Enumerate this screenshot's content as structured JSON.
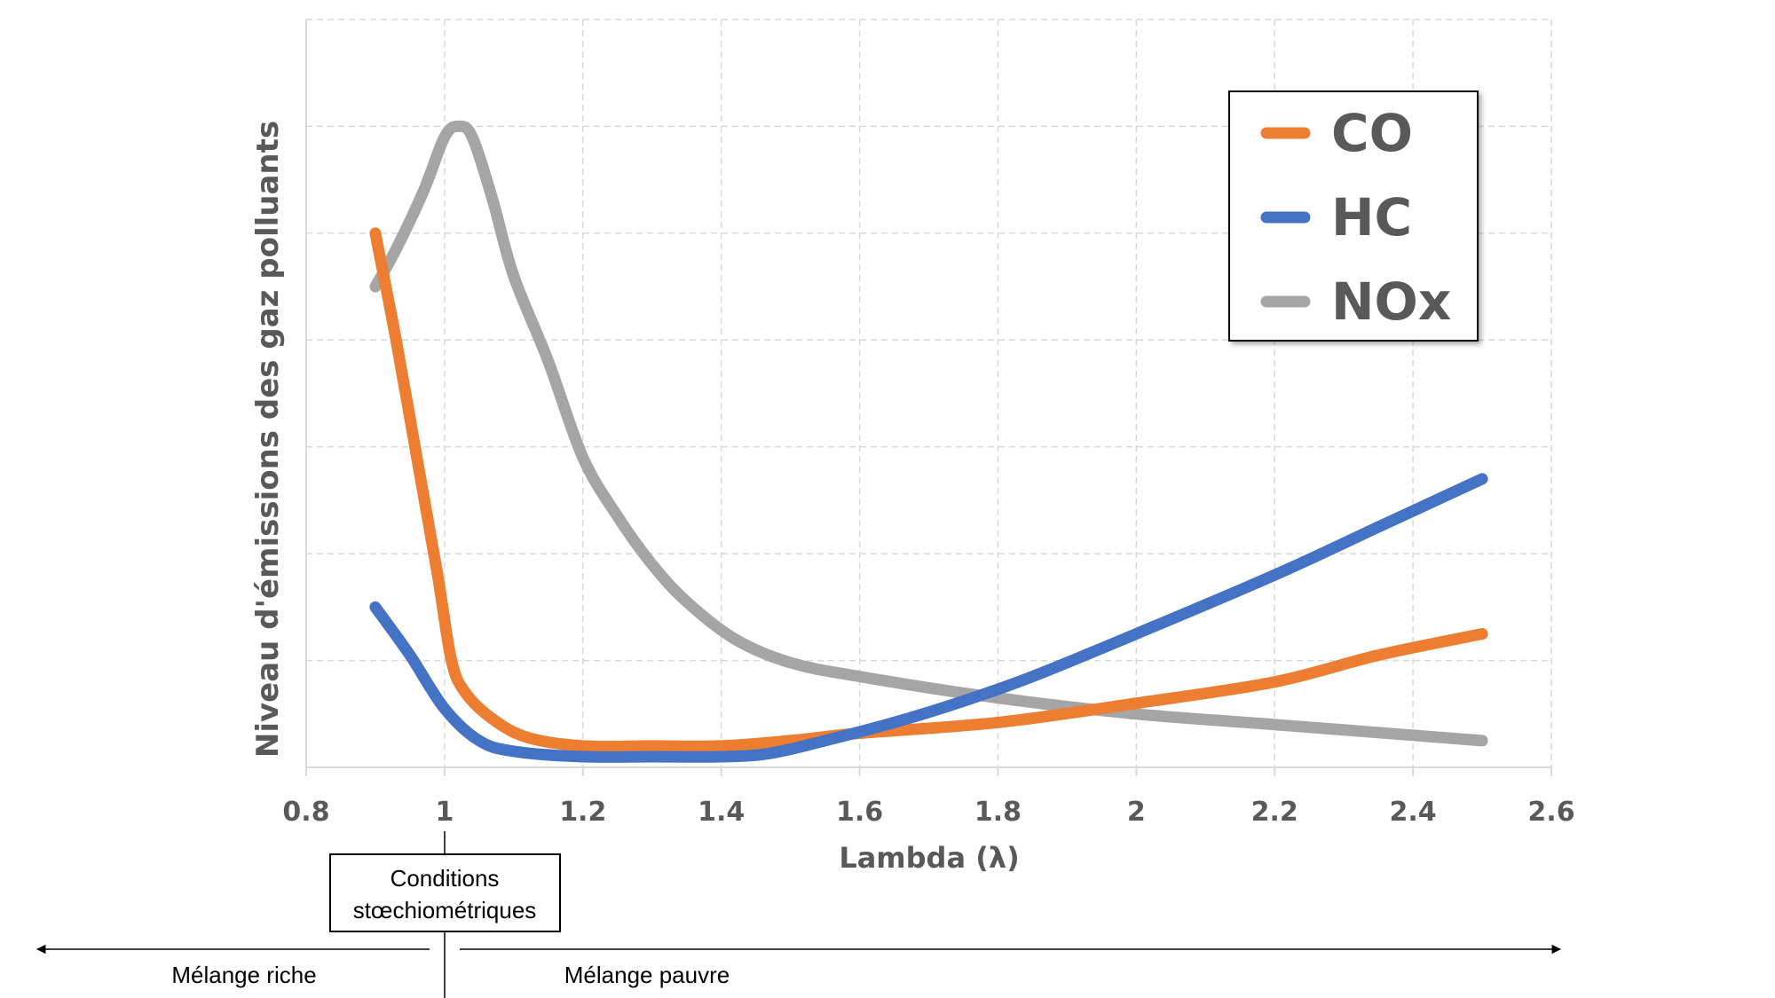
{
  "chart_data": {
    "type": "line",
    "title": "",
    "xlabel": "Lambda (λ)",
    "ylabel": "Niveau d'émissions des gaz polluants",
    "xlim": [
      0.8,
      2.6
    ],
    "ylim": [
      0,
      7
    ],
    "xticks": [
      "0.8",
      "1",
      "1.2",
      "1.4",
      "1.6",
      "1.8",
      "2",
      "2.2",
      "2.4",
      "2.6"
    ],
    "grid": true,
    "legend_position": "top-right",
    "series": [
      {
        "name": "CO",
        "color": "#ED7D31",
        "x": [
          0.9,
          0.93,
          0.96,
          0.99,
          1.01,
          1.03,
          1.07,
          1.12,
          1.2,
          1.3,
          1.4,
          1.5,
          1.6,
          1.8,
          2.0,
          2.2,
          2.35,
          2.5
        ],
        "y": [
          5.0,
          4.0,
          2.9,
          1.8,
          1.0,
          0.7,
          0.45,
          0.28,
          0.2,
          0.2,
          0.2,
          0.25,
          0.32,
          0.42,
          0.6,
          0.8,
          1.05,
          1.25
        ]
      },
      {
        "name": "HC",
        "color": "#4472C4",
        "x": [
          0.9,
          0.95,
          1.0,
          1.05,
          1.1,
          1.2,
          1.3,
          1.4,
          1.47,
          1.55,
          1.65,
          1.75,
          1.85,
          2.0,
          2.2,
          2.35,
          2.5
        ],
        "y": [
          1.5,
          1.05,
          0.55,
          0.25,
          0.15,
          0.1,
          0.1,
          0.1,
          0.13,
          0.25,
          0.42,
          0.62,
          0.85,
          1.25,
          1.8,
          2.25,
          2.7
        ]
      },
      {
        "name": "NOx",
        "color": "#A5A5A5",
        "x": [
          0.9,
          0.93,
          0.97,
          1.0,
          1.02,
          1.04,
          1.07,
          1.1,
          1.15,
          1.2,
          1.25,
          1.3,
          1.35,
          1.42,
          1.5,
          1.6,
          1.8,
          2.0,
          2.2,
          2.5
        ],
        "y": [
          4.5,
          4.85,
          5.4,
          5.9,
          6.0,
          5.9,
          5.3,
          4.6,
          3.8,
          2.9,
          2.35,
          1.9,
          1.55,
          1.2,
          0.98,
          0.85,
          0.65,
          0.5,
          0.4,
          0.25
        ]
      }
    ],
    "annotations": {
      "stoich_label_line1": "Conditions",
      "stoich_label_line2": "stœchiométriques",
      "rich_label": "Mélange riche",
      "lean_label": "Mélange pauvre"
    }
  }
}
